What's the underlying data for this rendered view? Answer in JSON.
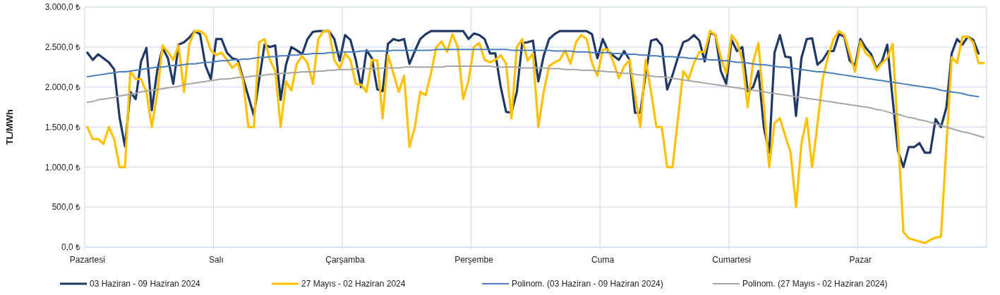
{
  "chart_data": {
    "type": "line",
    "ylabel": "TL/MWh",
    "categories": [
      "Pazartesi",
      null,
      null,
      null,
      null,
      null,
      null,
      null,
      null,
      null,
      null,
      null,
      null,
      null,
      null,
      null,
      null,
      null,
      null,
      null,
      null,
      null,
      null,
      null,
      "Salı",
      null,
      null,
      null,
      null,
      null,
      null,
      null,
      null,
      null,
      null,
      null,
      null,
      null,
      null,
      null,
      null,
      null,
      null,
      null,
      null,
      null,
      null,
      null,
      "Çarşamba",
      null,
      null,
      null,
      null,
      null,
      null,
      null,
      null,
      null,
      null,
      null,
      null,
      null,
      null,
      null,
      null,
      null,
      null,
      null,
      null,
      null,
      null,
      null,
      "Perşembe",
      null,
      null,
      null,
      null,
      null,
      null,
      null,
      null,
      null,
      null,
      null,
      null,
      null,
      null,
      null,
      null,
      null,
      null,
      null,
      null,
      null,
      null,
      null,
      "Cuma",
      null,
      null,
      null,
      null,
      null,
      null,
      null,
      null,
      null,
      null,
      null,
      null,
      null,
      null,
      null,
      null,
      null,
      null,
      null,
      null,
      null,
      null,
      null,
      "Cumartesi",
      null,
      null,
      null,
      null,
      null,
      null,
      null,
      null,
      null,
      null,
      null,
      null,
      null,
      null,
      null,
      null,
      null,
      null,
      null,
      null,
      null,
      null,
      null,
      "Pazar",
      null,
      null,
      null,
      null,
      null,
      null,
      null,
      null,
      null,
      null,
      null,
      null,
      null,
      null,
      null,
      null,
      null,
      null,
      null,
      null,
      null,
      null,
      null
    ],
    "ylim": [
      0,
      3000
    ],
    "yticks": [
      {
        "value": 0,
        "label": "0,0 ₺"
      },
      {
        "value": 500,
        "label": "500,0 ₺"
      },
      {
        "value": 1000,
        "label": "1.000,0 ₺"
      },
      {
        "value": 1500,
        "label": "1.500,0 ₺"
      },
      {
        "value": 2000,
        "label": "2.000,0 ₺"
      },
      {
        "value": 2500,
        "label": "2.500,0 ₺"
      },
      {
        "value": 3000,
        "label": "3.000,0 ₺"
      }
    ],
    "grid": true,
    "legend": "bottom",
    "marker": "none",
    "line_style": "solid",
    "series": [
      {
        "name": "03 Haziran - 09 Haziran 2024",
        "color": "#1f3864",
        "values": [
          2430,
          2340,
          2410,
          2360,
          2310,
          2220,
          1620,
          1260,
          1940,
          1850,
          2320,
          2490,
          1710,
          2200,
          2490,
          2360,
          2040,
          2530,
          2560,
          2620,
          2700,
          2660,
          2270,
          2100,
          2600,
          2600,
          2430,
          2360,
          2340,
          2110,
          1880,
          1650,
          2090,
          2530,
          2500,
          2520,
          1840,
          2280,
          2500,
          2460,
          2410,
          2600,
          2690,
          2700,
          2700,
          2700,
          2600,
          2330,
          2650,
          2590,
          2340,
          2000,
          2460,
          2360,
          1970,
          1950,
          2540,
          2600,
          2580,
          2600,
          2290,
          2450,
          2600,
          2660,
          2700,
          2700,
          2700,
          2700,
          2700,
          2700,
          2700,
          2600,
          2670,
          2650,
          2600,
          2420,
          2420,
          2000,
          1690,
          1680,
          1940,
          2550,
          2560,
          2580,
          2070,
          2390,
          2600,
          2660,
          2700,
          2700,
          2700,
          2700,
          2700,
          2700,
          2660,
          2360,
          2600,
          2450,
          2390,
          2340,
          2450,
          2340,
          1680,
          1680,
          2170,
          2580,
          2600,
          2520,
          1970,
          2150,
          2370,
          2560,
          2590,
          2650,
          2580,
          2320,
          2680,
          2650,
          2200,
          2040,
          2590,
          2450,
          2500,
          1950,
          2000,
          2200,
          1500,
          1180,
          2430,
          2650,
          2380,
          2370,
          1640,
          2360,
          2600,
          2610,
          2280,
          2340,
          2450,
          2450,
          2660,
          2630,
          2330,
          2270,
          2600,
          2490,
          2410,
          2230,
          2320,
          2530,
          1850,
          1200,
          1000,
          1250,
          1250,
          1300,
          1180,
          1180,
          1600,
          1500,
          1740,
          2420,
          2600,
          2530,
          2630,
          2590,
          2420,
          null
        ]
      },
      {
        "name": "27 Mayıs - 02 Haziran 2024",
        "color": "#ffc000",
        "values": [
          1500,
          1350,
          1350,
          1290,
          1500,
          1350,
          1000,
          1000,
          2200,
          2100,
          2100,
          1940,
          1500,
          1910,
          2520,
          2440,
          2340,
          2520,
          1940,
          2540,
          2700,
          2700,
          2650,
          2460,
          2400,
          2430,
          2340,
          2240,
          2300,
          2080,
          1500,
          1500,
          2560,
          2600,
          2340,
          2200,
          1500,
          2070,
          1960,
          2290,
          2390,
          2300,
          2040,
          2600,
          2700,
          2700,
          2340,
          2230,
          2420,
          2340,
          2040,
          2030,
          1940,
          2340,
          2330,
          1610,
          2400,
          2170,
          1940,
          2140,
          1250,
          1500,
          1940,
          1900,
          2170,
          2500,
          2570,
          2440,
          2660,
          2500,
          1850,
          2080,
          2500,
          2550,
          2340,
          2310,
          2340,
          2400,
          2290,
          1610,
          2500,
          2600,
          2330,
          2420,
          1500,
          1940,
          2260,
          2310,
          2340,
          2460,
          2290,
          2560,
          2650,
          2600,
          2300,
          2140,
          2470,
          2470,
          2310,
          2110,
          2260,
          2340,
          1910,
          1500,
          2340,
          1940,
          1500,
          1500,
          1000,
          1000,
          1600,
          2200,
          2100,
          2300,
          2440,
          2440,
          2700,
          2650,
          2370,
          2170,
          2650,
          2560,
          2340,
          1750,
          2310,
          2550,
          1770,
          1000,
          1550,
          1610,
          1390,
          1180,
          500,
          1290,
          1610,
          1000,
          1540,
          2110,
          2390,
          2600,
          2700,
          2650,
          2420,
          2190,
          2570,
          2420,
          2370,
          2210,
          2300,
          2360,
          2540,
          1400,
          190,
          110,
          90,
          70,
          50,
          90,
          120,
          130,
          1250,
          2370,
          2300,
          2630,
          2630,
          2560,
          2300,
          2300
        ]
      },
      {
        "name": "Polinom. (03 Haziran - 09 Haziran 2024)",
        "color": "#4a7ebb",
        "values": [
          2130,
          2140,
          2150,
          2160,
          2170,
          2180,
          2190,
          2190,
          2200,
          2210,
          2220,
          2230,
          2240,
          2250,
          2250,
          2260,
          2270,
          2270,
          2280,
          2290,
          2290,
          2300,
          2310,
          2310,
          2320,
          2330,
          2330,
          2340,
          2340,
          2350,
          2350,
          2360,
          2370,
          2370,
          2380,
          2380,
          2390,
          2390,
          2400,
          2400,
          2410,
          2410,
          2420,
          2420,
          2420,
          2430,
          2430,
          2440,
          2440,
          2440,
          2440,
          2450,
          2450,
          2450,
          2450,
          2450,
          2450,
          2460,
          2460,
          2460,
          2460,
          2460,
          2460,
          2460,
          2460,
          2470,
          2470,
          2470,
          2470,
          2470,
          2470,
          2470,
          2470,
          2470,
          2470,
          2470,
          2470,
          2470,
          2470,
          2460,
          2460,
          2460,
          2460,
          2460,
          2460,
          2460,
          2460,
          2450,
          2450,
          2450,
          2450,
          2440,
          2440,
          2440,
          2430,
          2430,
          2430,
          2430,
          2420,
          2420,
          2410,
          2410,
          2410,
          2400,
          2400,
          2390,
          2390,
          2380,
          2380,
          2380,
          2370,
          2370,
          2360,
          2360,
          2350,
          2350,
          2340,
          2340,
          2330,
          2330,
          2320,
          2310,
          2310,
          2300,
          2290,
          2280,
          2280,
          2270,
          2260,
          2250,
          2250,
          2240,
          2230,
          2220,
          2210,
          2200,
          2190,
          2190,
          2180,
          2170,
          2160,
          2150,
          2140,
          2130,
          2120,
          2110,
          2100,
          2090,
          2080,
          2070,
          2060,
          2050,
          2040,
          2030,
          2020,
          2010,
          2000,
          1990,
          1980,
          1960,
          1950,
          1940,
          1930,
          1920,
          1900,
          1890,
          1880,
          null
        ]
      },
      {
        "name": "Polinom. (27 Mayıs - 02 Haziran 2024)",
        "color": "#a5a5a5",
        "values": [
          1810,
          1820,
          1840,
          1850,
          1860,
          1870,
          1890,
          1900,
          1910,
          1920,
          1940,
          1950,
          1960,
          1970,
          1980,
          1990,
          2000,
          2010,
          2030,
          2040,
          2050,
          2060,
          2070,
          2080,
          2090,
          2100,
          2100,
          2110,
          2120,
          2120,
          2130,
          2140,
          2140,
          2150,
          2160,
          2160,
          2170,
          2170,
          2180,
          2180,
          2190,
          2190,
          2190,
          2200,
          2200,
          2210,
          2210,
          2220,
          2220,
          2220,
          2230,
          2230,
          2230,
          2230,
          2230,
          2240,
          2240,
          2240,
          2240,
          2250,
          2250,
          2250,
          2250,
          2250,
          2250,
          2250,
          2250,
          2260,
          2260,
          2260,
          2260,
          2260,
          2260,
          2260,
          2260,
          2260,
          2250,
          2250,
          2250,
          2250,
          2250,
          2240,
          2240,
          2240,
          2240,
          2240,
          2230,
          2230,
          2230,
          2220,
          2220,
          2220,
          2210,
          2210,
          2210,
          2200,
          2200,
          2190,
          2190,
          2180,
          2170,
          2170,
          2160,
          2150,
          2150,
          2140,
          2130,
          2130,
          2120,
          2110,
          2100,
          2090,
          2080,
          2070,
          2060,
          2050,
          2040,
          2030,
          2020,
          2010,
          2000,
          1990,
          1980,
          1970,
          1960,
          1950,
          1940,
          1930,
          1920,
          1910,
          1900,
          1890,
          1880,
          1870,
          1860,
          1850,
          1840,
          1830,
          1820,
          1810,
          1800,
          1790,
          1780,
          1770,
          1760,
          1750,
          1740,
          1720,
          1710,
          1690,
          1670,
          1660,
          1640,
          1620,
          1610,
          1590,
          1580,
          1560,
          1540,
          1520,
          1500,
          1480,
          1460,
          1440,
          1430,
          1410,
          1390,
          1370
        ]
      }
    ]
  }
}
